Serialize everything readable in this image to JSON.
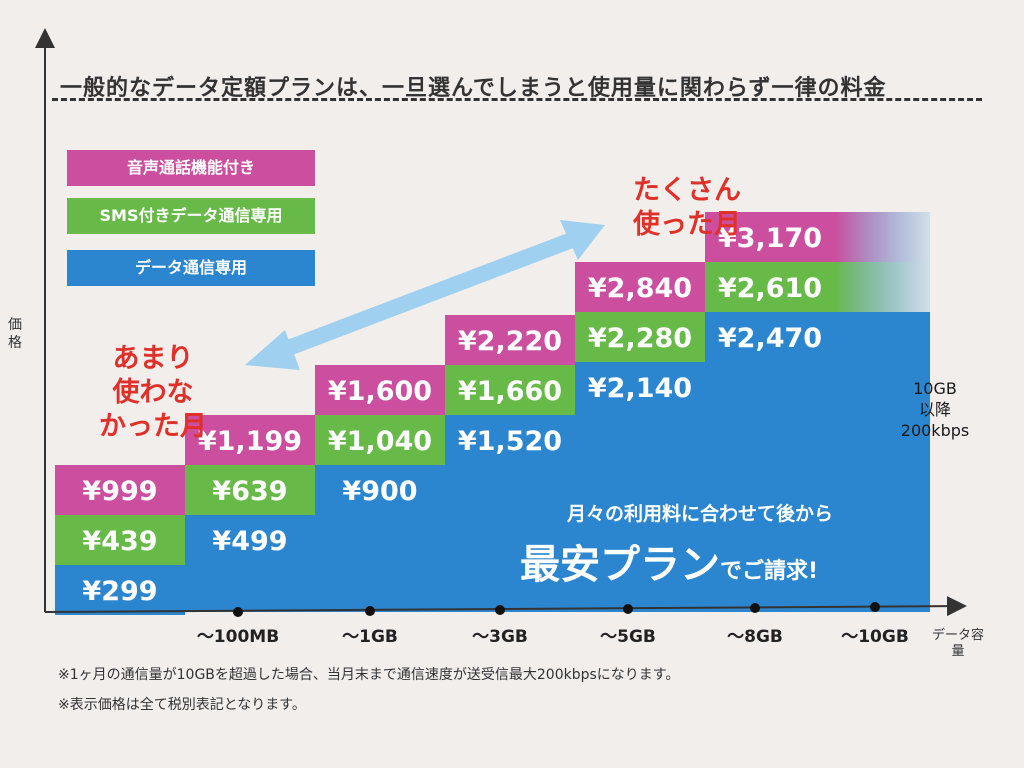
{
  "heading": "一般的なデータ定額プランは、一旦選んでしまうと使用量に関わらず一律の料金",
  "y_axis_label": "価格",
  "x_axis_label": "データ容量",
  "legend": {
    "voice": "音声通話機能付き",
    "sms": "SMS付きデータ通信専用",
    "data": "データ通信専用"
  },
  "colors": {
    "voice": "#cc4e9e",
    "sms": "#67b948",
    "data": "#2c86cf",
    "background": "#f1eeec",
    "label_red": "#e0302a",
    "arrow": "#9fd0ef"
  },
  "low_usage_label": [
    "あまり",
    "使わな",
    "かった月"
  ],
  "high_usage_label": [
    "たくさん",
    "使った月"
  ],
  "cap_label": [
    "10GB",
    "以降",
    "200kbps"
  ],
  "promo_line1": "月々の利用料に合わせて後から",
  "promo_line2_big": "最安プラン",
  "promo_line2_small": "でご請求!",
  "footnotes": [
    "※1ヶ月の通信量が10GBを超過した場合、当月末まで通信速度が送受信最大200kbpsになります。",
    "※表示価格は全て税別表記となります。"
  ],
  "chart_data": {
    "type": "bar",
    "title": "",
    "xlabel": "データ容量",
    "ylabel": "価格",
    "categories": [
      "～100MB",
      "～1GB",
      "～3GB",
      "～5GB",
      "～8GB",
      "～10GB"
    ],
    "series": [
      {
        "name": "データ通信専用",
        "values": [
          299,
          499,
          900,
          1520,
          2140,
          2470
        ],
        "labels": [
          "¥299",
          "¥499",
          "¥900",
          "¥1,520",
          "¥2,140",
          "¥2,470"
        ]
      },
      {
        "name": "SMS付きデータ通信専用",
        "values": [
          439,
          639,
          1040,
          1660,
          2280,
          2610
        ],
        "labels": [
          "¥439",
          "¥639",
          "¥1,040",
          "¥1,660",
          "¥2,280",
          "¥2,610"
        ]
      },
      {
        "name": "音声通話機能付き",
        "values": [
          999,
          1199,
          1600,
          2220,
          2840,
          3170
        ],
        "labels": [
          "¥999",
          "¥1,199",
          "¥1,600",
          "¥2,220",
          "¥2,840",
          "¥3,170"
        ]
      }
    ]
  }
}
